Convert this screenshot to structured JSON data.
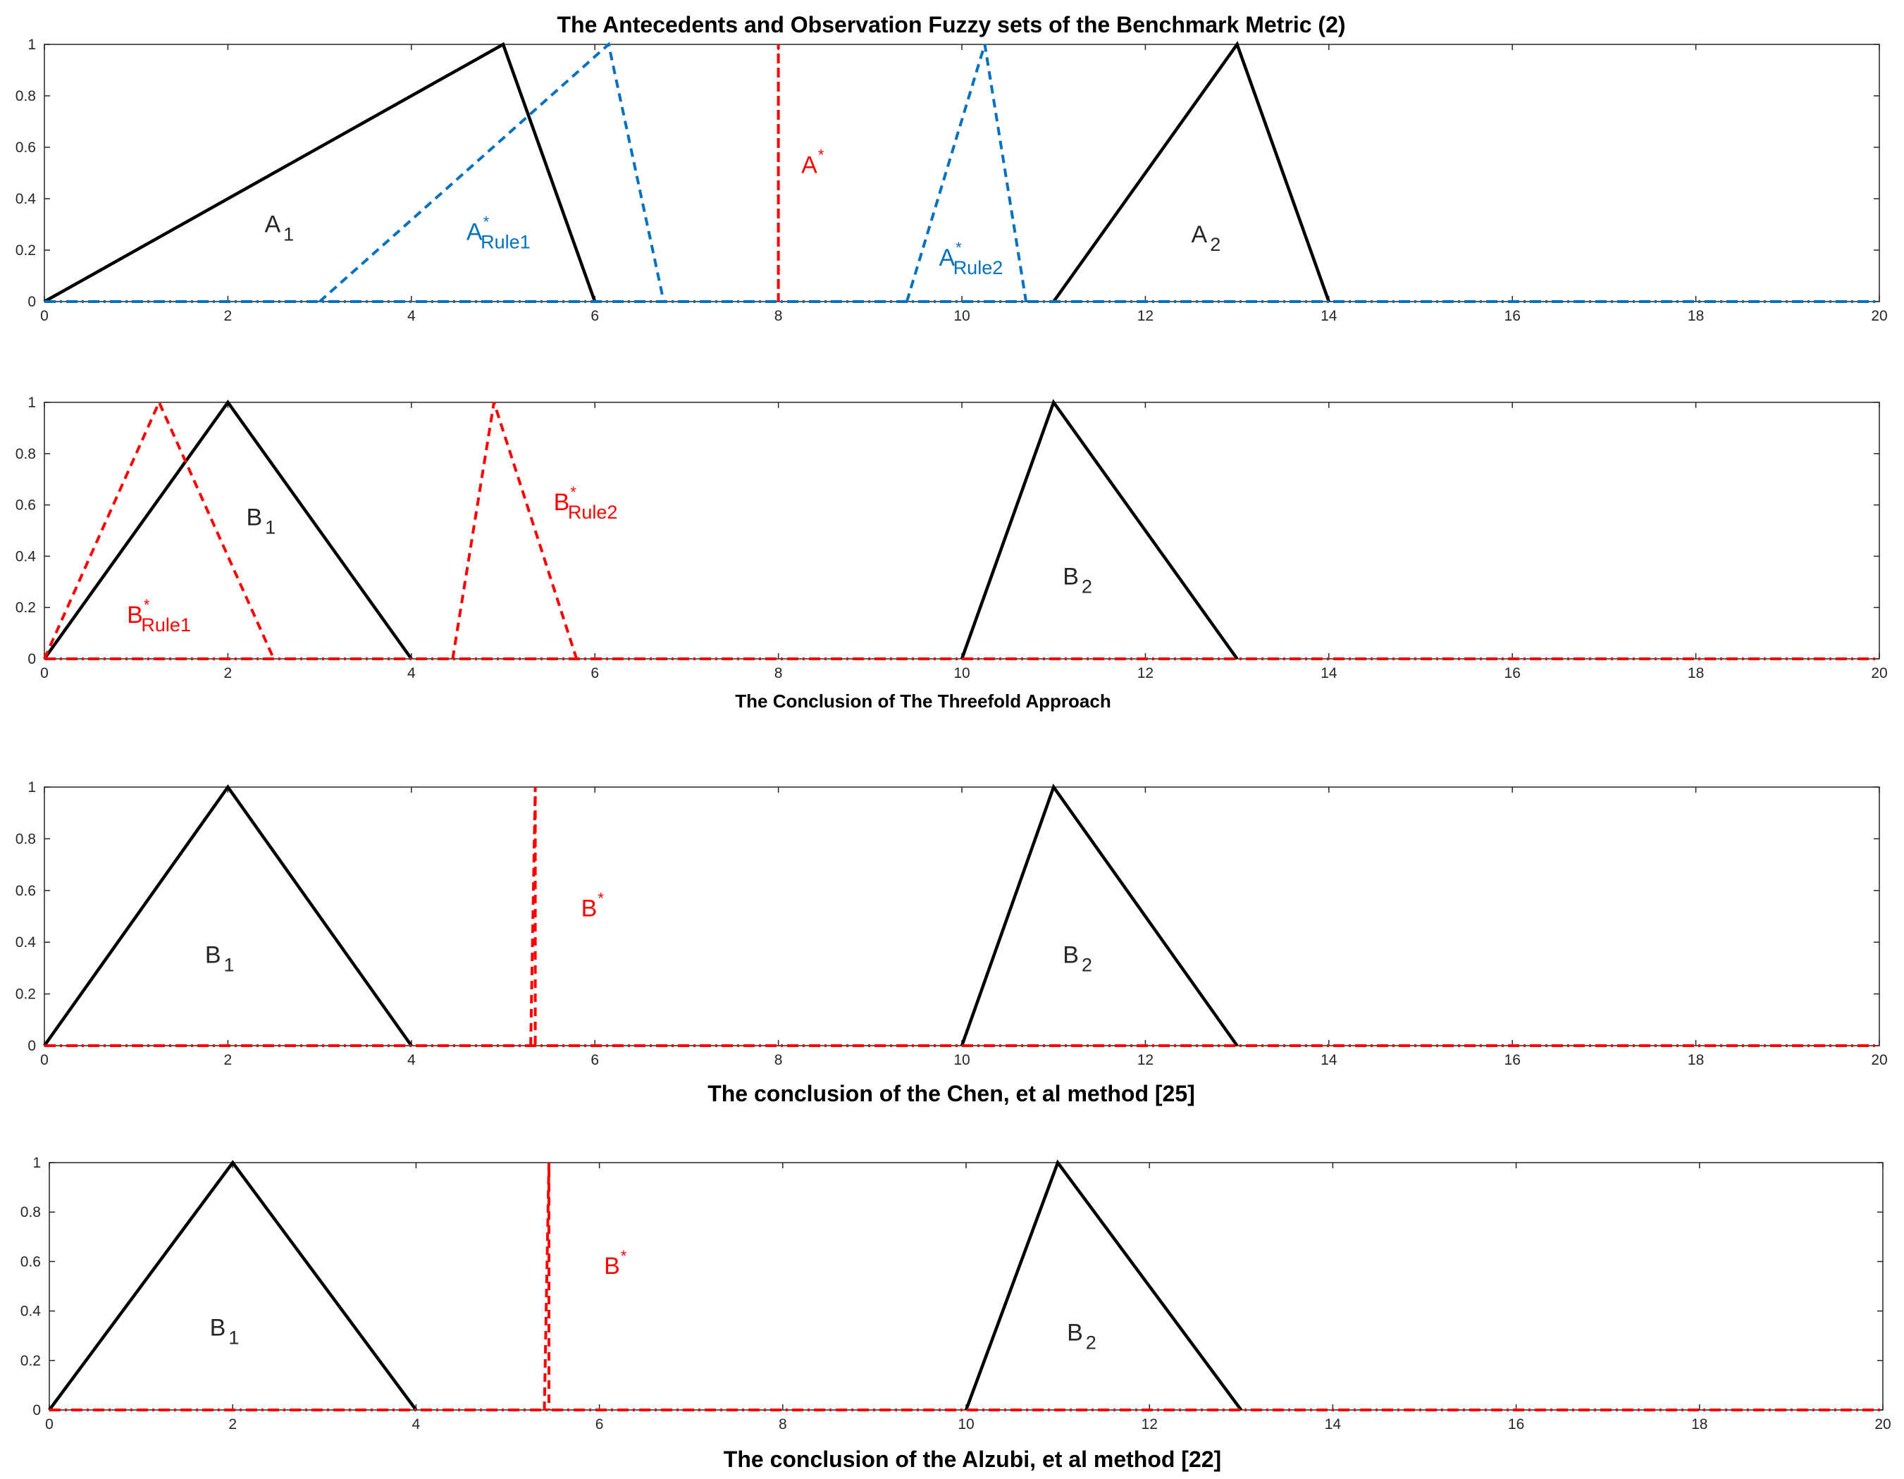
{
  "figure_title": "The Antecedents and Observation Fuzzy sets of the Benchmark Metric (2)",
  "colors": {
    "black": "#000000",
    "blue": "#0072BD",
    "red": "#FF0000",
    "tick": "#262626"
  },
  "chart_data": [
    {
      "type": "line",
      "title": "The Antecedents and Observation Fuzzy sets of the Benchmark Metric (2)",
      "xlabel": "",
      "ylabel": "",
      "xlim": [
        0,
        20
      ],
      "ylim": [
        0,
        1
      ],
      "xticks": [
        0,
        2,
        4,
        6,
        8,
        10,
        12,
        14,
        16,
        18,
        20
      ],
      "yticks": [
        0,
        0.2,
        0.4,
        0.6,
        0.8,
        1
      ],
      "grid": false,
      "series": [
        {
          "color": "#000000",
          "style": "solid",
          "x": [
            0,
            5,
            6
          ],
          "y": [
            0,
            1,
            0
          ]
        },
        {
          "color": "#000000",
          "style": "solid",
          "x": [
            11,
            13,
            14
          ],
          "y": [
            0,
            1,
            0
          ]
        },
        {
          "color": "#0072BD",
          "style": "dashed",
          "x": [
            3,
            6.15,
            6.75
          ],
          "y": [
            0,
            1,
            0
          ]
        },
        {
          "color": "#0072BD",
          "style": "dashed",
          "x": [
            9.4,
            10.25,
            10.7
          ],
          "y": [
            0,
            1,
            0
          ]
        },
        {
          "color": "#FF0000",
          "style": "dashed",
          "x": [
            8,
            8,
            8
          ],
          "y": [
            0,
            1,
            0
          ]
        },
        {
          "color": "#0072BD",
          "style": "dashdot",
          "x": [
            0,
            20
          ],
          "y": [
            0,
            0
          ]
        }
      ],
      "annotations": [
        {
          "base": "A",
          "sub": "1",
          "sup": "",
          "color": "#262626",
          "x": 2.4,
          "y": 0.27
        },
        {
          "base": "A",
          "sub": "Rule1",
          "sup": "*",
          "color": "#0072BD",
          "x": 4.6,
          "y": 0.24
        },
        {
          "base": "A",
          "sub": "",
          "sup": "*",
          "color": "#FF0000",
          "x": 8.25,
          "y": 0.5
        },
        {
          "base": "A",
          "sub": "Rule2",
          "sup": "*",
          "color": "#0072BD",
          "x": 9.75,
          "y": 0.14
        },
        {
          "base": "A",
          "sub": "2",
          "sup": "",
          "color": "#262626",
          "x": 12.5,
          "y": 0.23
        }
      ]
    },
    {
      "type": "line",
      "title": "The Conclusion of The Threefold Approach",
      "xlabel": "",
      "ylabel": "",
      "xlim": [
        0,
        20
      ],
      "ylim": [
        0,
        1
      ],
      "xticks": [
        0,
        2,
        4,
        6,
        8,
        10,
        12,
        14,
        16,
        18,
        20
      ],
      "yticks": [
        0,
        0.2,
        0.4,
        0.6,
        0.8,
        1
      ],
      "grid": false,
      "series": [
        {
          "color": "#000000",
          "style": "solid",
          "x": [
            0,
            2,
            4
          ],
          "y": [
            0,
            1,
            0
          ]
        },
        {
          "color": "#000000",
          "style": "solid",
          "x": [
            10,
            11,
            13
          ],
          "y": [
            0,
            1,
            0
          ]
        },
        {
          "color": "#FF0000",
          "style": "dashed",
          "x": [
            0,
            1.25,
            2.5
          ],
          "y": [
            0,
            1,
            0
          ]
        },
        {
          "color": "#FF0000",
          "style": "dashed",
          "x": [
            4.45,
            4.9,
            5.8
          ],
          "y": [
            0,
            1,
            0
          ]
        },
        {
          "color": "#FF0000",
          "style": "dashdot",
          "x": [
            0,
            20
          ],
          "y": [
            0,
            0
          ]
        }
      ],
      "annotations": [
        {
          "base": "B",
          "sub": "1",
          "sup": "",
          "color": "#262626",
          "x": 2.2,
          "y": 0.52
        },
        {
          "base": "B",
          "sub": "Rule1",
          "sup": "*",
          "color": "#FF0000",
          "x": 0.9,
          "y": 0.14
        },
        {
          "base": "B",
          "sub": "Rule2",
          "sup": "*",
          "color": "#FF0000",
          "x": 5.55,
          "y": 0.58
        },
        {
          "base": "B",
          "sub": "2",
          "sup": "",
          "color": "#262626",
          "x": 11.1,
          "y": 0.29
        }
      ]
    },
    {
      "type": "line",
      "title": "The conclusion of the Chen, et al method   [25]",
      "xlabel": "",
      "ylabel": "",
      "xlim": [
        0,
        20
      ],
      "ylim": [
        0,
        1
      ],
      "xticks": [
        0,
        2,
        4,
        6,
        8,
        10,
        12,
        14,
        16,
        18,
        20
      ],
      "yticks": [
        0,
        0.2,
        0.4,
        0.6,
        0.8,
        1
      ],
      "grid": false,
      "series": [
        {
          "color": "#000000",
          "style": "solid",
          "x": [
            0,
            2,
            4
          ],
          "y": [
            0,
            1,
            0
          ]
        },
        {
          "color": "#000000",
          "style": "solid",
          "x": [
            10,
            11,
            13
          ],
          "y": [
            0,
            1,
            0
          ]
        },
        {
          "color": "#FF0000",
          "style": "dashed",
          "x": [
            5.3,
            5.35,
            5.35
          ],
          "y": [
            0,
            1,
            0
          ]
        },
        {
          "color": "#FF0000",
          "style": "dashdot",
          "x": [
            0,
            20
          ],
          "y": [
            0,
            0
          ]
        }
      ],
      "annotations": [
        {
          "base": "B",
          "sub": "1",
          "sup": "",
          "color": "#262626",
          "x": 1.75,
          "y": 0.32
        },
        {
          "base": "B",
          "sub": "",
          "sup": "*",
          "color": "#FF0000",
          "x": 5.85,
          "y": 0.5
        },
        {
          "base": "B",
          "sub": "2",
          "sup": "",
          "color": "#262626",
          "x": 11.1,
          "y": 0.32
        }
      ]
    },
    {
      "type": "line",
      "title": "The conclusion of the Alzubi, et al method  [22]",
      "xlabel": "",
      "ylabel": "",
      "xlim": [
        0,
        20
      ],
      "ylim": [
        0,
        1
      ],
      "xticks": [
        0,
        2,
        4,
        6,
        8,
        10,
        12,
        14,
        16,
        18,
        20
      ],
      "yticks": [
        0,
        0.2,
        0.4,
        0.6,
        0.8,
        1
      ],
      "grid": false,
      "series": [
        {
          "color": "#000000",
          "style": "solid",
          "x": [
            0,
            2,
            4
          ],
          "y": [
            0,
            1,
            0
          ]
        },
        {
          "color": "#000000",
          "style": "solid",
          "x": [
            10,
            11,
            13
          ],
          "y": [
            0,
            1,
            0
          ]
        },
        {
          "color": "#FF0000",
          "style": "dashed",
          "x": [
            5.4,
            5.45,
            5.45
          ],
          "y": [
            0,
            1,
            0
          ]
        },
        {
          "color": "#FF0000",
          "style": "dashdot",
          "x": [
            0,
            20
          ],
          "y": [
            0,
            0
          ]
        }
      ],
      "annotations": [
        {
          "base": "B",
          "sub": "1",
          "sup": "",
          "color": "#262626",
          "x": 1.75,
          "y": 0.3
        },
        {
          "base": "B",
          "sub": "",
          "sup": "*",
          "color": "#FF0000",
          "x": 6.05,
          "y": 0.55
        },
        {
          "base": "B",
          "sub": "2",
          "sup": "",
          "color": "#262626",
          "x": 11.1,
          "y": 0.28
        }
      ]
    }
  ]
}
